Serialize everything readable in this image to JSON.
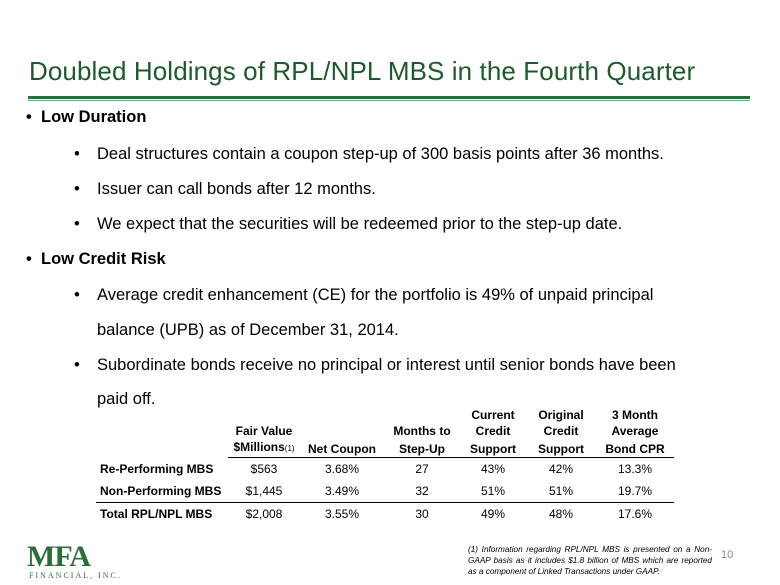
{
  "title": "Doubled Holdings of RPL/NPL MBS in the Fourth Quarter",
  "sections": [
    {
      "heading": "Low Duration",
      "items": [
        "Deal structures contain a coupon step-up of 300 basis points after 36 months.",
        "Issuer can call bonds after 12 months.",
        "We expect that the securities will be redeemed prior to the step-up date."
      ]
    },
    {
      "heading": "Low Credit Risk",
      "items": [
        [
          "Average credit enhancement (CE) for the portfolio is 49% of unpaid principal",
          "balance (UPB) as of December 31, 2014."
        ],
        [
          "Subordinate bonds receive no principal or interest until senior bonds have been",
          "paid off."
        ]
      ]
    }
  ],
  "table": {
    "headers": {
      "fair_value_l1": "Fair Value",
      "fair_value_l2": "$Millions",
      "fair_value_note": "(1)",
      "net_coupon": "Net Coupon",
      "months_l1": "Months to",
      "months_l2": "Step-Up",
      "ccs_l1": "Current",
      "ccs_l2": "Credit",
      "ccs_l3": "Support",
      "ocs_l1": "Original",
      "ocs_l2": "Credit",
      "ocs_l3": "Support",
      "cpr_l1": "3 Month",
      "cpr_l2": "Average",
      "cpr_l3": "Bond  CPR"
    },
    "rows": [
      {
        "label": "Re-Performing MBS",
        "fair_value": "$563",
        "net_coupon": "3.68%",
        "months": "27",
        "current_cs": "43%",
        "original_cs": "42%",
        "cpr": "13.3%"
      },
      {
        "label": "Non-Performing MBS",
        "fair_value": "$1,445",
        "net_coupon": "3.49%",
        "months": "32",
        "current_cs": "51%",
        "original_cs": "51%",
        "cpr": "19.7%"
      },
      {
        "label": "Total RPL/NPL MBS",
        "fair_value": "$2,008",
        "net_coupon": "3.55%",
        "months": "30",
        "current_cs": "49%",
        "original_cs": "48%",
        "cpr": "17.6%"
      }
    ]
  },
  "footnote": "(1) Information regarding RPL/NPL MBS is presented on a Non-GAAP basis as it includes $1.8 billion of MBS which are reported as a component of Linked Transactions under GAAP.",
  "logo": {
    "mark": "MFA",
    "sub": "FINANCIAL, INC."
  },
  "page_number": "10",
  "colors": {
    "brand_green": "#2c6e3a",
    "title_green": "#1e5b2b"
  }
}
